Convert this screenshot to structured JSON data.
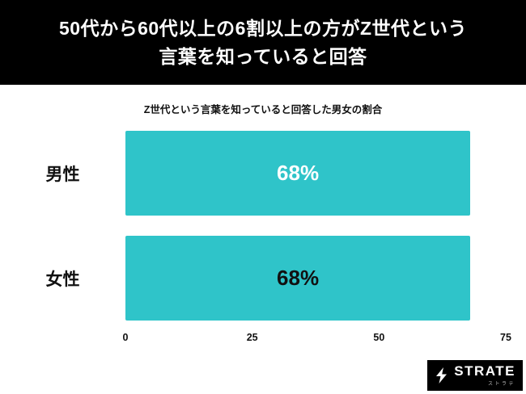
{
  "header": {
    "title_line1": "50代から60代以上の6割以上の方がZ世代という",
    "title_line2": "言葉を知っていると回答",
    "bg_color": "#000000",
    "text_color": "#ffffff"
  },
  "chart_data": {
    "type": "bar",
    "orientation": "horizontal",
    "title": "Z世代という言葉を知っていると回答した男女の割合",
    "categories": [
      "男性",
      "女性"
    ],
    "values": [
      68,
      68
    ],
    "value_labels": [
      "68%",
      "68%"
    ],
    "value_label_colors": [
      "#ffffff",
      "#111111"
    ],
    "xlabel": "",
    "ylabel": "",
    "xlim": [
      0,
      75
    ],
    "x_ticks": [
      "0",
      "25",
      "50",
      "75"
    ],
    "bar_color": "#2fc4c9",
    "grid": false,
    "legend": false
  },
  "footer": {
    "logo_text": "STRATE",
    "logo_subtext": "ストラテ",
    "bg_color": "#000000"
  }
}
